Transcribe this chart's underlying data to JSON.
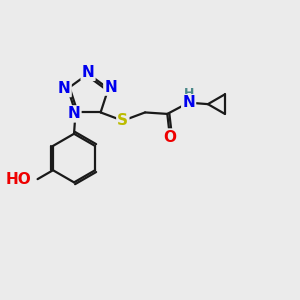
{
  "background_color": "#ebebeb",
  "bond_color": "#1a1a1a",
  "bond_width": 1.6,
  "atom_colors": {
    "N": "#0000ee",
    "S": "#bbbb00",
    "O": "#ee0000",
    "C": "#1a1a1a",
    "H": "#4a8888"
  },
  "font_size_atom": 11,
  "font_size_h": 9,
  "xlim": [
    0,
    10
  ],
  "ylim": [
    0,
    10
  ]
}
